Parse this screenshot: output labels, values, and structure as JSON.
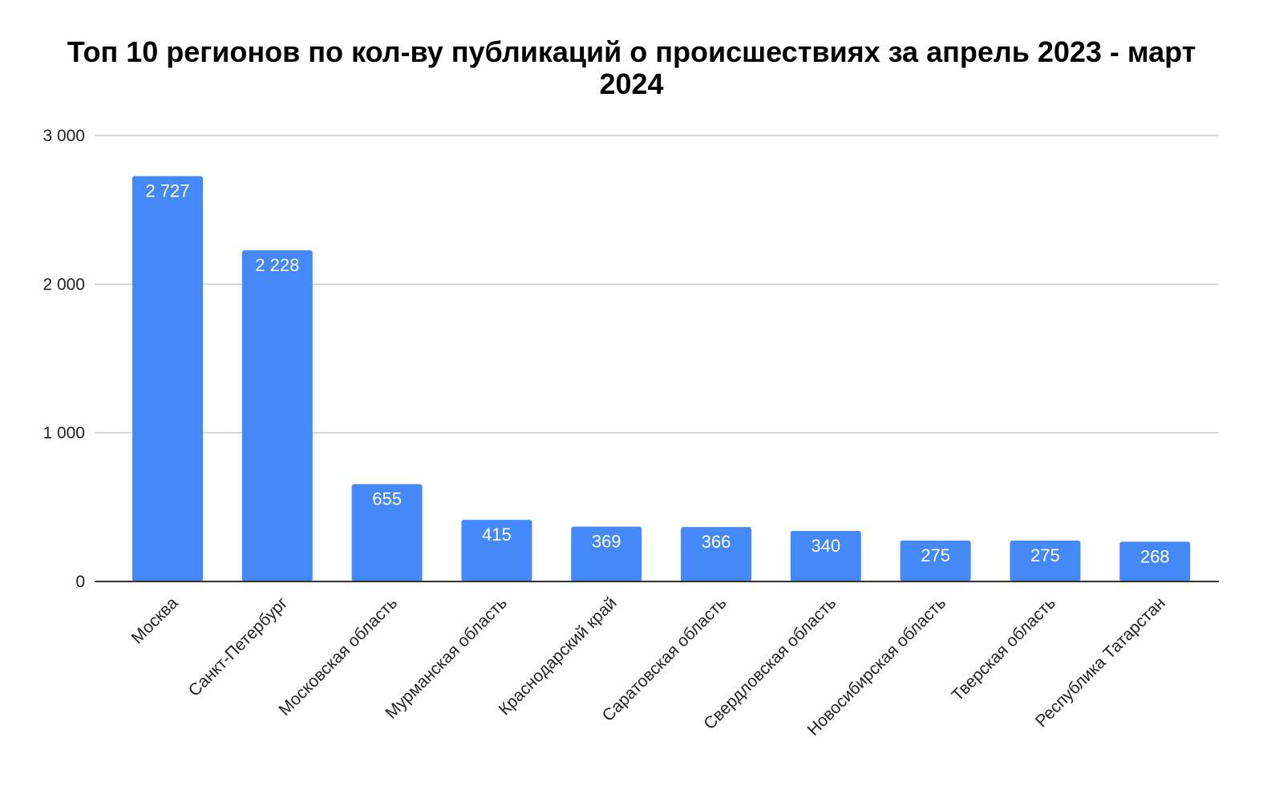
{
  "chart_data": {
    "type": "bar",
    "title": "Топ 10 регионов по кол-ву публикаций о происшествиях за апрель 2023 - март 2024",
    "xlabel": "",
    "ylabel": "",
    "categories": [
      "Москва",
      "Санкт-Петербург",
      "Московская область",
      "Мурманская область",
      "Краснодарский край",
      "Саратовская область",
      "Свердловская область",
      "Новосибирская область",
      "Тверская область",
      "Республика Татарстан"
    ],
    "values": [
      2727,
      2228,
      655,
      415,
      369,
      366,
      340,
      275,
      275,
      268
    ],
    "value_labels": [
      "2 727",
      "2 228",
      "655",
      "415",
      "369",
      "366",
      "340",
      "275",
      "275",
      "268"
    ],
    "ylim": [
      0,
      3000
    ],
    "yticks": [
      0,
      1000,
      2000,
      3000
    ],
    "ytick_labels": [
      "0",
      "1 000",
      "2 000",
      "3 000"
    ],
    "grid": true,
    "legend": "none",
    "colors": {
      "bar": "#4589f8",
      "grid": "#cccccc",
      "axis": "#333333",
      "data_label": "#ffffff",
      "text": "#222222"
    }
  }
}
